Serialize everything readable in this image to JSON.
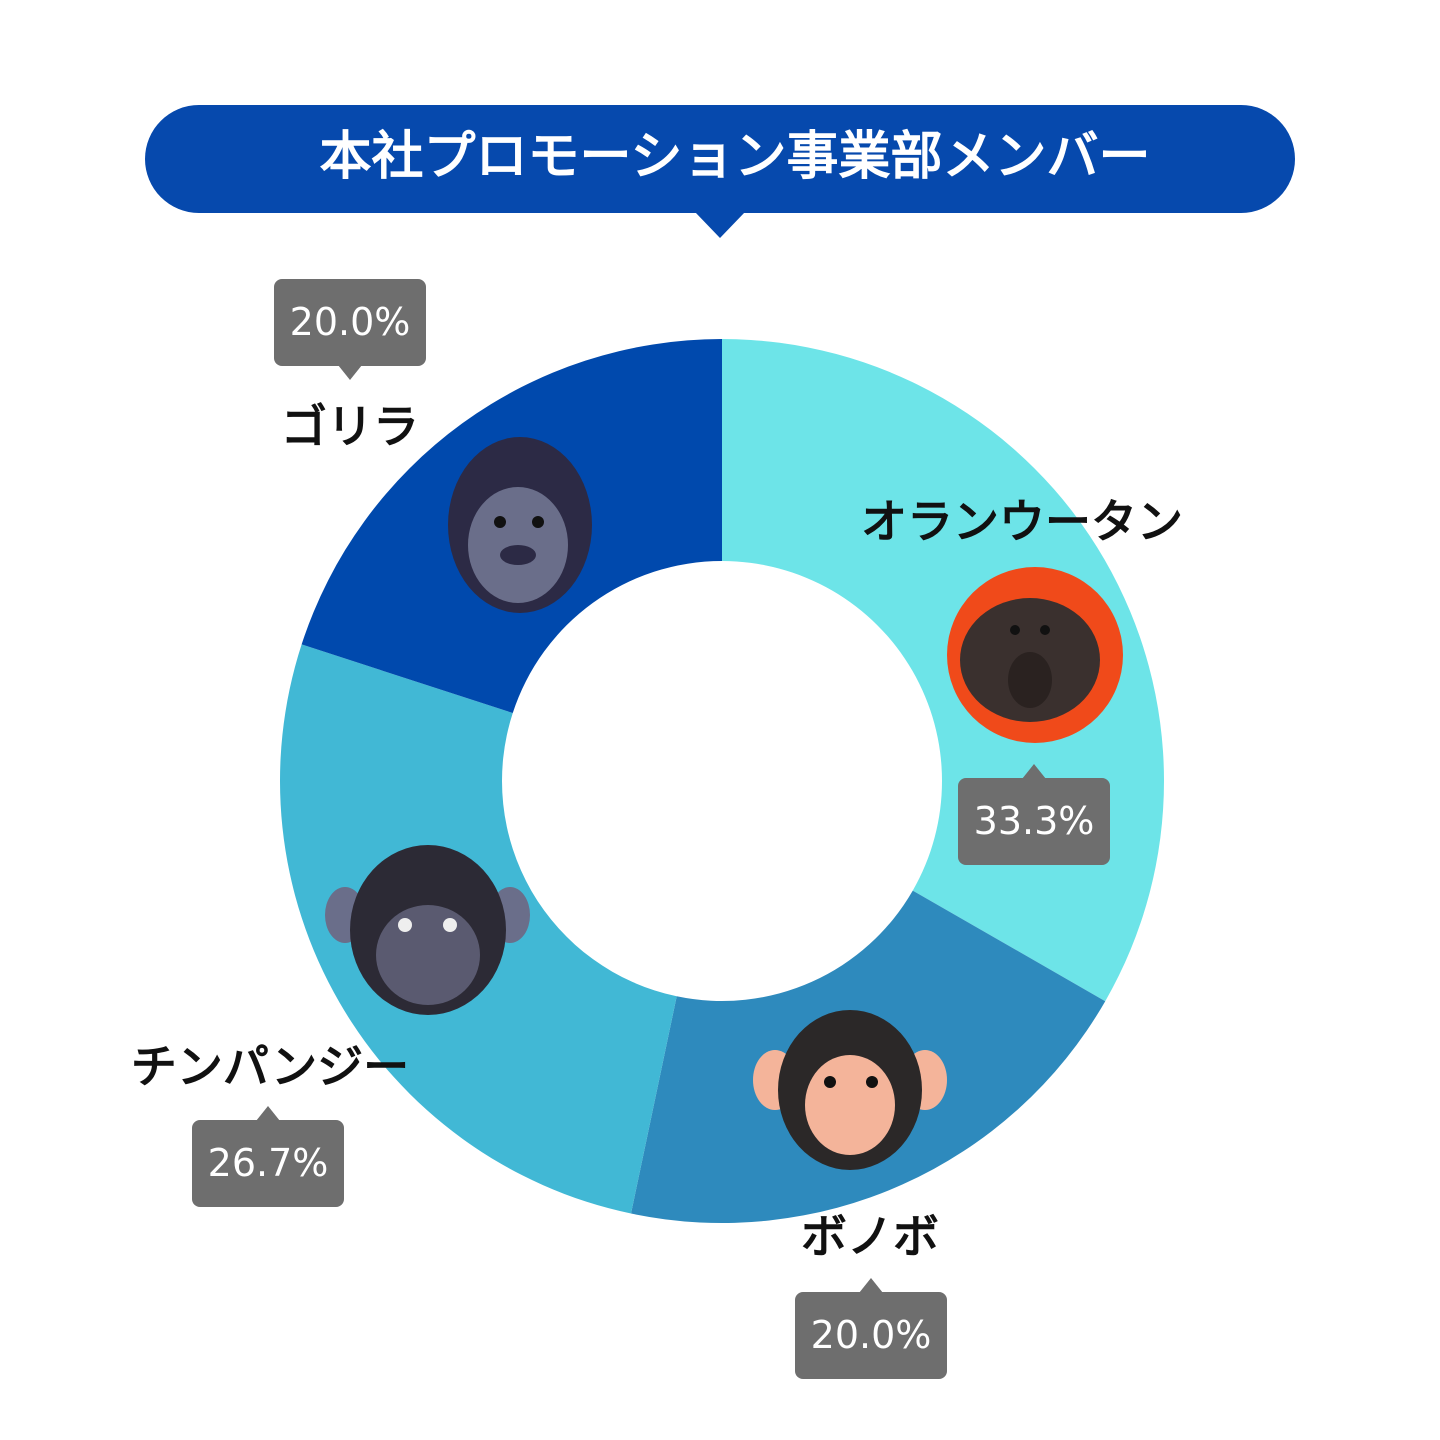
{
  "chart_data": {
    "type": "donut",
    "title": "本社プロモーション事業部メンバー",
    "categories": [
      "オランウータン",
      "ボノボ",
      "チンパンジー",
      "ゴリラ"
    ],
    "values": [
      33.3,
      20.0,
      26.7,
      20.0
    ],
    "value_labels": [
      "33.3%",
      "20.0%",
      "26.7%",
      "20.0%"
    ],
    "colors": [
      "#6de4e8",
      "#2e8abd",
      "#41b8d5",
      "#0049ad"
    ]
  }
}
